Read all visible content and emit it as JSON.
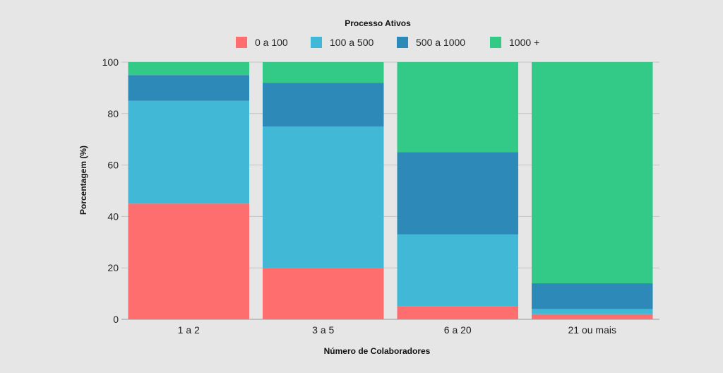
{
  "chart_data": {
    "type": "bar",
    "stacked": true,
    "legend_title": "Processo Ativos",
    "legend_position": "top-center",
    "categories": [
      "1 a 2",
      "3 a 5",
      "6 a 20",
      "21 ou mais"
    ],
    "series": [
      {
        "name": "0 a 100",
        "color": "#ff6e6e",
        "values": [
          45,
          20,
          5,
          2
        ]
      },
      {
        "name": "100 a 500",
        "color": "#40b8d6",
        "values": [
          40,
          55,
          28,
          2
        ]
      },
      {
        "name": "500 a 1000",
        "color": "#2d8ab8",
        "values": [
          10,
          17,
          32,
          10
        ]
      },
      {
        "name": "1000 +",
        "color": "#33c986",
        "values": [
          5,
          8,
          35,
          86
        ]
      }
    ],
    "xlabel": "Número de Colaboradores",
    "ylabel": "Porcentagem (%)",
    "ylim": [
      0,
      100
    ],
    "yticks": [
      "0",
      "20",
      "40",
      "60",
      "80",
      "100"
    ],
    "grid": true
  }
}
